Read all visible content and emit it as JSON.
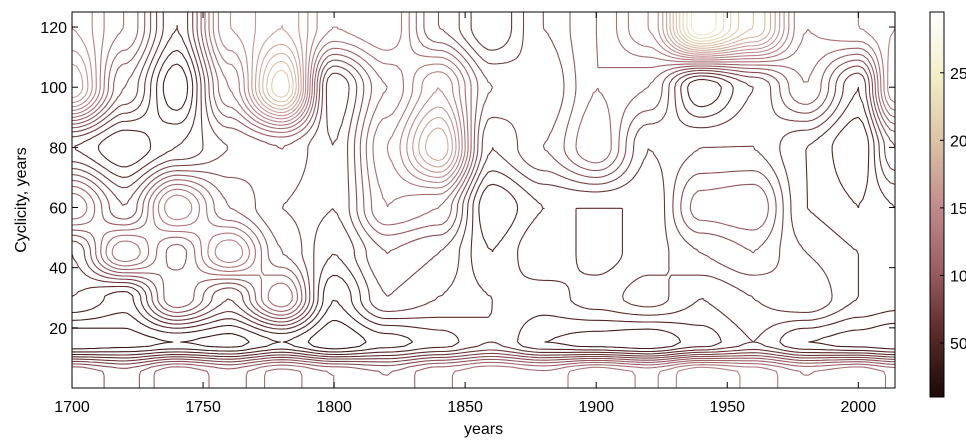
{
  "chart_data": {
    "type": "contour",
    "xlabel": "years",
    "ylabel": "Cyclicity, years",
    "xlim": [
      1700,
      2014
    ],
    "ylim": [
      0,
      125
    ],
    "x_ticks": [
      1700,
      1750,
      1800,
      1850,
      1900,
      1950,
      2000
    ],
    "y_ticks": [
      20,
      40,
      60,
      80,
      100,
      120
    ],
    "colorbar": {
      "range": [
        10,
        295
      ],
      "ticks": [
        50,
        100,
        150,
        200,
        250
      ],
      "colormap": [
        "#1a0a08",
        "#5a2a28",
        "#9b5f63",
        "#c28d8d",
        "#dcc3a6",
        "#f2efc8",
        "#ffffff"
      ]
    },
    "x_grid": [
      1700,
      1720,
      1740,
      1760,
      1780,
      1800,
      1820,
      1840,
      1860,
      1880,
      1900,
      1920,
      1940,
      1960,
      1980,
      2000,
      2014
    ],
    "y_grid": [
      5,
      15,
      30,
      45,
      60,
      80,
      100,
      120
    ],
    "z_grid": [
      [
        110,
        95,
        120,
        105,
        125,
        110,
        100,
        118,
        130,
        122,
        140,
        128,
        150,
        138,
        120,
        130,
        118
      ],
      [
        20,
        25,
        30,
        25,
        40,
        20,
        35,
        45,
        60,
        40,
        35,
        30,
        45,
        60,
        40,
        35,
        30
      ],
      [
        60,
        45,
        110,
        70,
        130,
        40,
        80,
        70,
        60,
        55,
        65,
        75,
        60,
        70,
        80,
        60,
        55
      ],
      [
        70,
        140,
        95,
        150,
        90,
        60,
        90,
        80,
        50,
        70,
        55,
        65,
        80,
        90,
        70,
        60,
        50
      ],
      [
        130,
        80,
        150,
        100,
        80,
        70,
        120,
        110,
        40,
        60,
        60,
        60,
        105,
        110,
        60,
        50,
        60
      ],
      [
        60,
        40,
        60,
        80,
        90,
        70,
        130,
        190,
        70,
        90,
        120,
        70,
        80,
        80,
        60,
        40,
        90
      ],
      [
        180,
        90,
        30,
        120,
        220,
        60,
        110,
        150,
        90,
        80,
        110,
        100,
        40,
        70,
        110,
        60,
        150
      ],
      [
        150,
        120,
        60,
        150,
        170,
        130,
        140,
        90,
        60,
        90,
        110,
        140,
        250,
        200,
        120,
        130,
        140
      ]
    ]
  }
}
